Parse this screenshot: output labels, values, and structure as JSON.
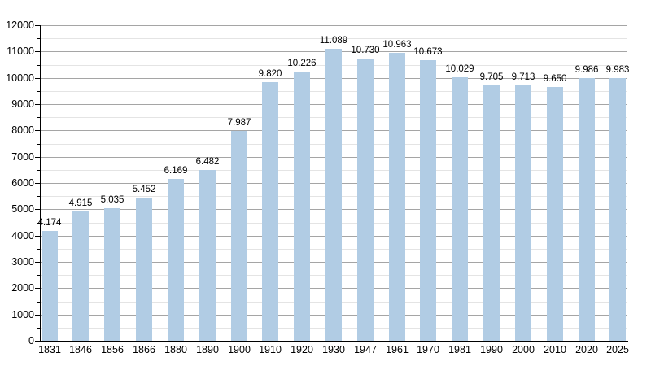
{
  "chart_data": {
    "type": "bar",
    "title": "",
    "xlabel": "",
    "ylabel": "",
    "categories": [
      "1831",
      "1846",
      "1856",
      "1866",
      "1880",
      "1890",
      "1900",
      "1910",
      "1920",
      "1930",
      "1947",
      "1961",
      "1970",
      "1981",
      "1990",
      "2000",
      "2010",
      "2020",
      "2025"
    ],
    "values": [
      4174,
      4915,
      5035,
      5452,
      6169,
      6482,
      7987,
      9820,
      10226,
      11089,
      10730,
      10963,
      10673,
      10029,
      9705,
      9713,
      9650,
      9986,
      9983
    ],
    "value_labels": [
      "4.174",
      "4.915",
      "5.035",
      "5.452",
      "6.169",
      "6.482",
      "7.987",
      "9.820",
      "10.226",
      "11.089",
      "10.730",
      "10.963",
      "10.673",
      "10.029",
      "9.705",
      "9.713",
      "9.650",
      "9.986",
      "9.983"
    ],
    "ylim": [
      0,
      12000
    ],
    "ytick_step": 1000,
    "ytick_minor_step": 500,
    "ytick_labels": [
      "0",
      "1000",
      "2000",
      "3000",
      "4000",
      "5000",
      "6000",
      "7000",
      "8000",
      "9000",
      "10000",
      "11000",
      "12000"
    ],
    "grid": "major-and-minor",
    "legend": "none",
    "colors": {
      "bar": "#b1cce4",
      "grid_major": "#a5a5a5",
      "grid_minor": "#e4e4e4",
      "axis": "#000000",
      "text": "#000000",
      "background": "#ffffff"
    }
  }
}
